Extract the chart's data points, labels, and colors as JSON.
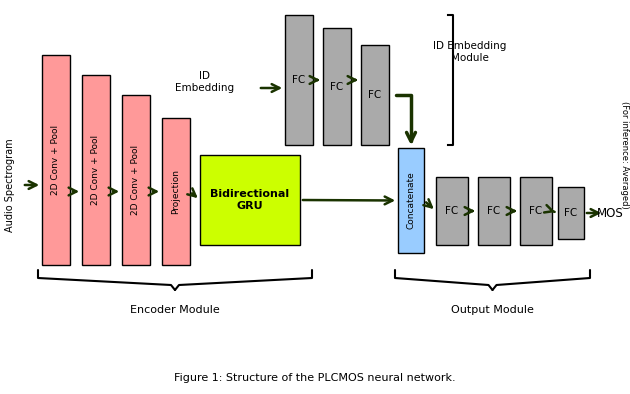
{
  "fig_width": 6.3,
  "fig_height": 3.94,
  "bg_color": "#ffffff",
  "pink_color": "#FF9999",
  "gray_color": "#AAAAAA",
  "blue_color": "#99CCFF",
  "green_color": "#CCFF00",
  "dark_green": "#1a3300",
  "arrow_color": "#1a3300",
  "title_text": "Figure 1: Structure of the PLCMOS neural network.",
  "encoder_label": "Encoder Module",
  "output_label": "Output Module",
  "id_module_label": "ID Embedding\nModule",
  "id_embed_label": "ID\nEmbedding",
  "audio_label": "Audio Spectrogram",
  "mos_label": "MOS",
  "inference_label": "(For inference: Averaged)",
  "bidir_label": "Bidirectional\nGRU",
  "concat_label": "Concatenate",
  "conv_labels": [
    "2D Conv + Pool",
    "2D Conv + Pool",
    "2D Conv + Pool"
  ],
  "proj_label": "Projection"
}
